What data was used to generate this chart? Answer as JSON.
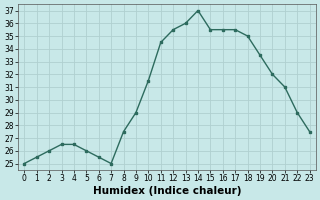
{
  "x": [
    0,
    1,
    2,
    3,
    4,
    5,
    6,
    7,
    8,
    9,
    10,
    11,
    12,
    13,
    14,
    15,
    16,
    17,
    18,
    19,
    20,
    21,
    22,
    23
  ],
  "y": [
    25,
    25.5,
    26,
    26.5,
    26.5,
    26,
    25.5,
    25,
    27.5,
    29,
    31.5,
    34.5,
    35.5,
    36,
    37,
    35.5,
    35.5,
    35.5,
    35,
    33.5,
    32,
    31,
    29,
    27.5
  ],
  "xlabel": "Humidex (Indice chaleur)",
  "ylim": [
    24.5,
    37.5
  ],
  "xlim": [
    -0.5,
    23.5
  ],
  "yticks": [
    25,
    26,
    27,
    28,
    29,
    30,
    31,
    32,
    33,
    34,
    35,
    36,
    37
  ],
  "xticks": [
    0,
    1,
    2,
    3,
    4,
    5,
    6,
    7,
    8,
    9,
    10,
    11,
    12,
    13,
    14,
    15,
    16,
    17,
    18,
    19,
    20,
    21,
    22,
    23
  ],
  "line_color": "#2d6b5e",
  "marker": "s",
  "marker_size": 2.0,
  "bg_color": "#c8e8e8",
  "grid_color": "#b0d0d0",
  "xlabel_fontsize": 7.5,
  "tick_fontsize": 5.5,
  "linewidth": 1.0
}
